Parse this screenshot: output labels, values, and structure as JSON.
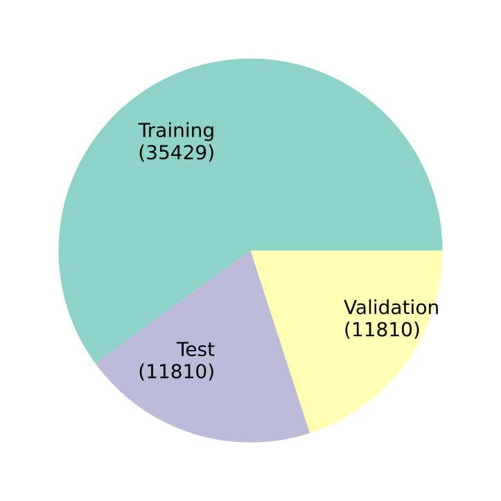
{
  "chart_data": {
    "type": "pie",
    "title": "",
    "slices": [
      {
        "name": "Training",
        "label": "Training",
        "count_label": "(35429)",
        "value": 35429,
        "color": "#8dd3c7"
      },
      {
        "name": "Test",
        "label": "Test",
        "count_label": "(11810)",
        "value": 11810,
        "color": "#bebada"
      },
      {
        "name": "Validation",
        "label": "Validation",
        "count_label": "(11810)",
        "value": 11810,
        "color": "#ffffb3"
      }
    ],
    "start_angle_deg": 0,
    "direction": "counterclockwise",
    "legend": "none",
    "labels_position": "inside"
  }
}
